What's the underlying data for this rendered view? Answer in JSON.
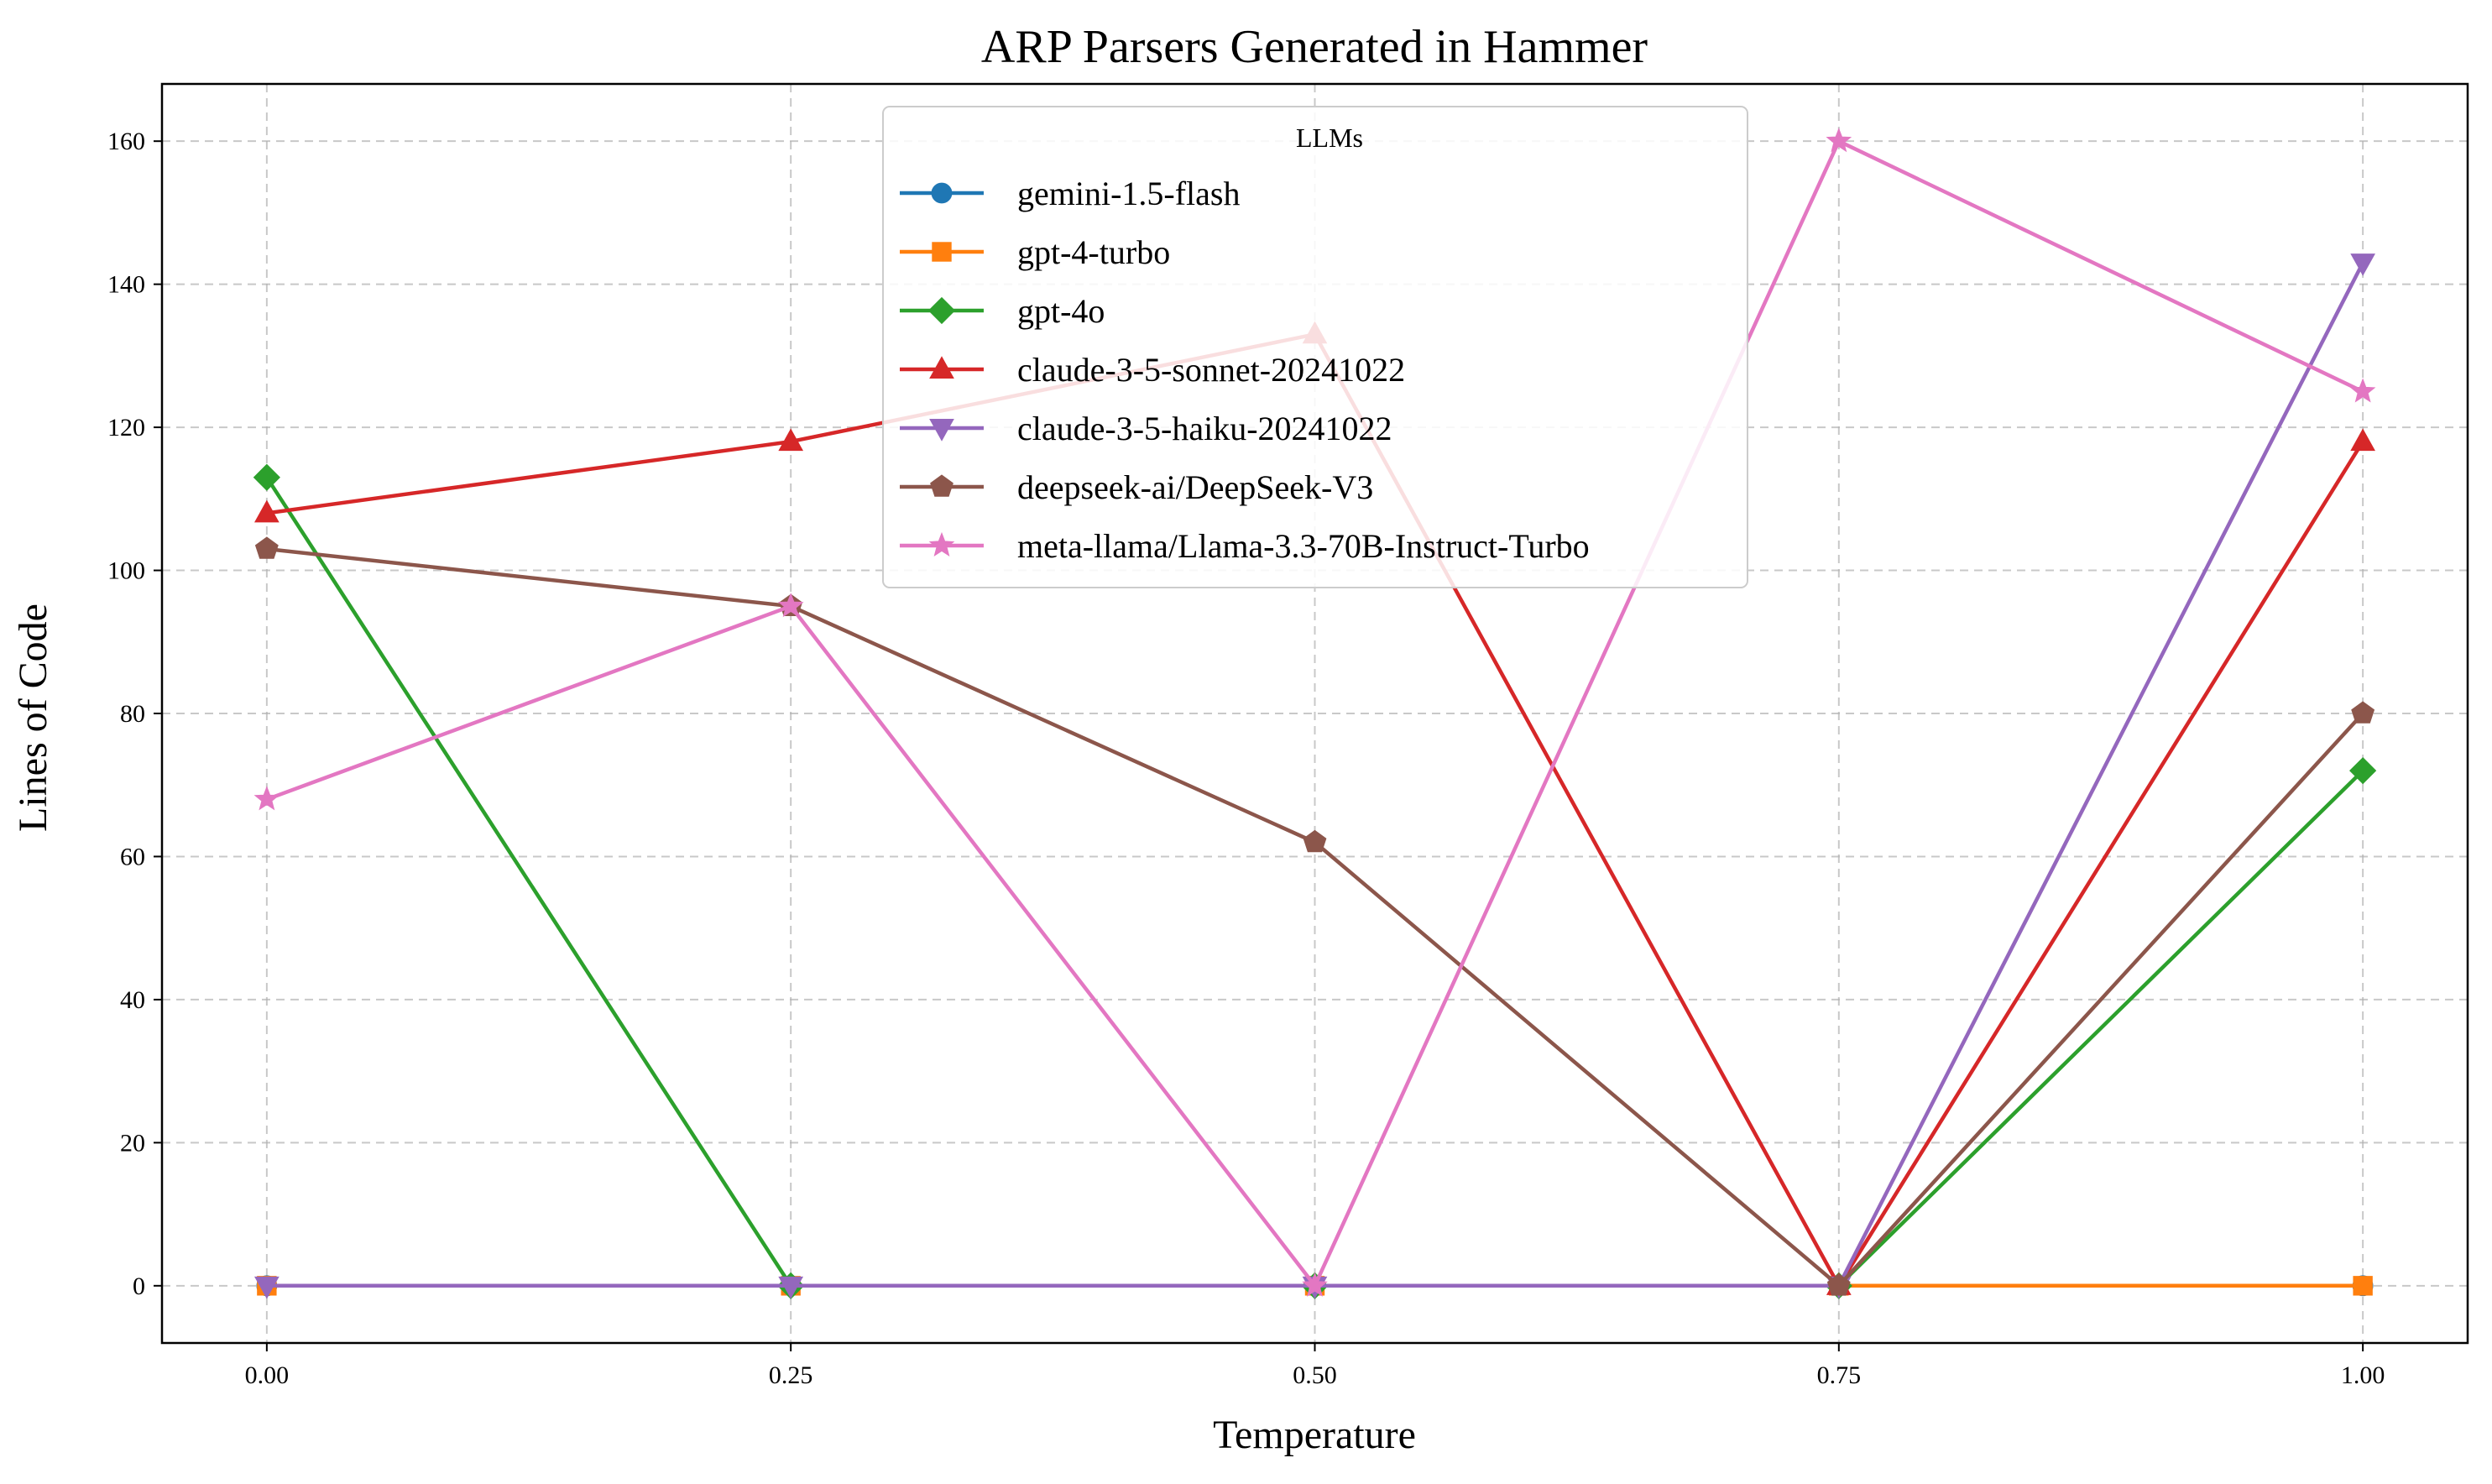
{
  "chart_data": {
    "type": "line",
    "title": "ARP Parsers Generated in Hammer",
    "xlabel": "Temperature",
    "ylabel": "Lines of Code",
    "x": [
      0.0,
      0.25,
      0.5,
      0.75,
      1.0
    ],
    "x_tick_labels": [
      "0.00",
      "0.25",
      "0.50",
      "0.75",
      "1.00"
    ],
    "xlim": [
      -0.05,
      1.05
    ],
    "ylim": [
      -8,
      168
    ],
    "y_ticks": [
      0,
      20,
      40,
      60,
      80,
      100,
      120,
      140,
      160
    ],
    "grid": true,
    "legend": {
      "title": "LLMs",
      "position": "top-center"
    },
    "series": [
      {
        "name": "gemini-1.5-flash",
        "color": "#1f77b4",
        "marker": "circle",
        "values": [
          0,
          0,
          0,
          0,
          0
        ]
      },
      {
        "name": "gpt-4-turbo",
        "color": "#ff7f0e",
        "marker": "square",
        "values": [
          0,
          0,
          0,
          0,
          0
        ]
      },
      {
        "name": "gpt-4o",
        "color": "#2ca02c",
        "marker": "diamond",
        "values": [
          113,
          0,
          0,
          0,
          72
        ]
      },
      {
        "name": "claude-3-5-sonnet-20241022",
        "color": "#d62728",
        "marker": "triangle-up",
        "values": [
          108,
          118,
          133,
          0,
          118
        ]
      },
      {
        "name": "claude-3-5-haiku-20241022",
        "color": "#9467bd",
        "marker": "triangle-down",
        "values": [
          0,
          0,
          0,
          0,
          143
        ]
      },
      {
        "name": "deepseek-ai/DeepSeek-V3",
        "color": "#8c564b",
        "marker": "pentagon",
        "values": [
          103,
          95,
          62,
          0,
          80
        ]
      },
      {
        "name": "meta-llama/Llama-3.3-70B-Instruct-Turbo",
        "color": "#e377c2",
        "marker": "star",
        "values": [
          68,
          95,
          0,
          160,
          125
        ]
      }
    ]
  }
}
